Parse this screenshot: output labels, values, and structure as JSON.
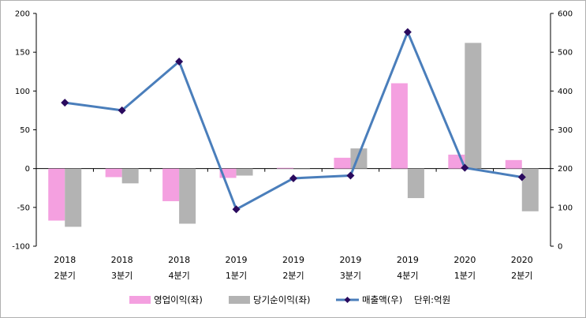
{
  "chart_data": {
    "type": "bar",
    "categories": [
      {
        "year": "2018",
        "quarter": "2분기"
      },
      {
        "year": "2018",
        "quarter": "3분기"
      },
      {
        "year": "2018",
        "quarter": "4분기"
      },
      {
        "year": "2019",
        "quarter": "1분기"
      },
      {
        "year": "2019",
        "quarter": "2분기"
      },
      {
        "year": "2019",
        "quarter": "3분기"
      },
      {
        "year": "2019",
        "quarter": "4분기"
      },
      {
        "year": "2020",
        "quarter": "1분기"
      },
      {
        "year": "2020",
        "quarter": "2분기"
      }
    ],
    "series": [
      {
        "name": "영업이익(좌)",
        "type": "bar",
        "axis": "left",
        "color": "#f4a0e0",
        "values": [
          -67,
          -11,
          -42,
          -12,
          1,
          14,
          110,
          18,
          11
        ]
      },
      {
        "name": "당기순이익(좌)",
        "type": "bar",
        "axis": "left",
        "color": "#b3b3b3",
        "values": [
          -75,
          -19,
          -71,
          -9,
          -1,
          26,
          -38,
          162,
          -55
        ]
      },
      {
        "name": "매출액(우)",
        "type": "line",
        "axis": "right",
        "color": "#4a7ebb",
        "marker_color": "#2a0a5e",
        "values": [
          370,
          350,
          476,
          95,
          175,
          182,
          552,
          202,
          178
        ]
      }
    ],
    "y_left": {
      "lim": [
        -100,
        200
      ],
      "ticks": [
        "-100",
        "-50",
        "0",
        "50",
        "100",
        "150",
        "200"
      ]
    },
    "y_right": {
      "lim": [
        0,
        600
      ],
      "ticks": [
        "0",
        "100",
        "200",
        "300",
        "400",
        "500",
        "600"
      ]
    },
    "unit_note": "단위:억원",
    "grid": false,
    "legend_position": "bottom"
  }
}
